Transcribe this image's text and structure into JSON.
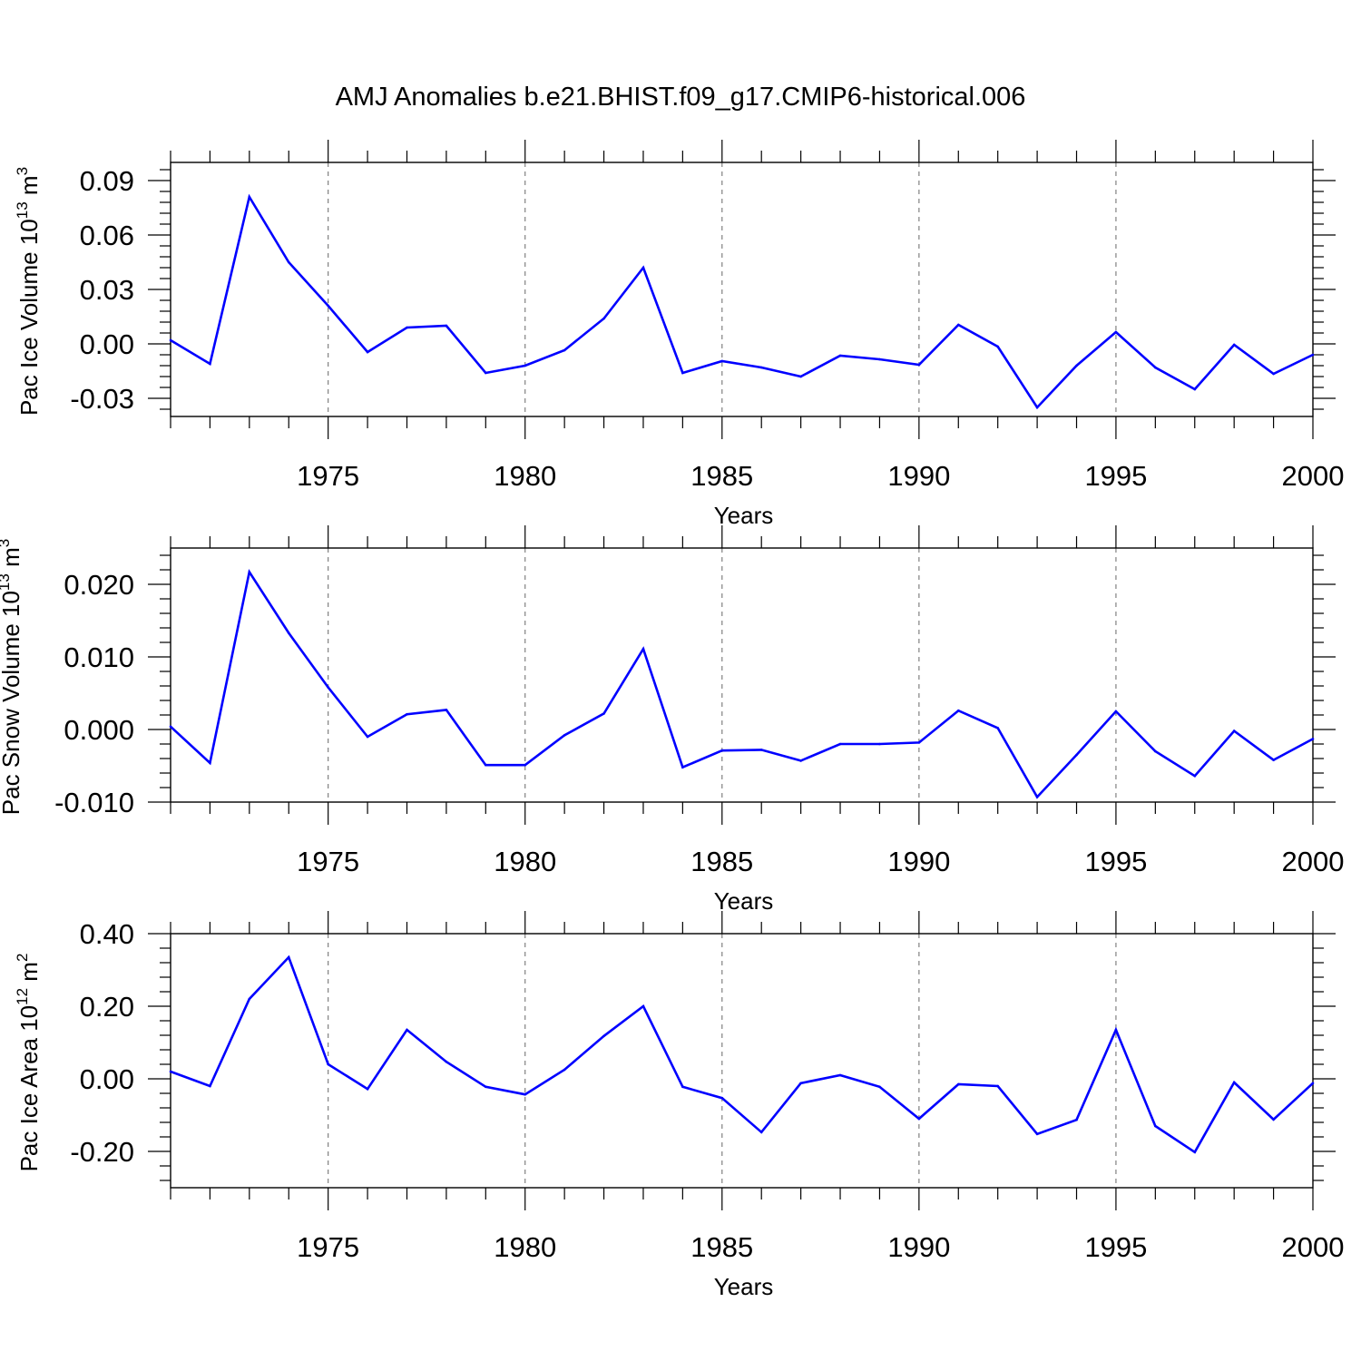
{
  "title": "AMJ Anomalies b.e21.BHIST.f09_g17.CMIP6-historical.006",
  "colors": {
    "line": "#0000ff",
    "axis": "#000000",
    "grid": "#808080"
  },
  "chart_data": [
    {
      "type": "line",
      "ylabel": {
        "main": "Pac Ice Volume 10",
        "exp": "13",
        "unit": " m",
        "unit_exp": "3"
      },
      "xlabel": "Years",
      "xlim": [
        1971,
        2000
      ],
      "ylim": [
        -0.04,
        0.1
      ],
      "yticks": [
        -0.03,
        0.0,
        0.03,
        0.06,
        0.09
      ],
      "ytick_labels": [
        "-0.03",
        "0.00",
        "0.03",
        "0.06",
        "0.09"
      ],
      "xticks": [
        1975,
        1980,
        1985,
        1990,
        1995,
        2000
      ],
      "xtick_labels": [
        "1975",
        "1980",
        "1985",
        "1990",
        "1995",
        "2000"
      ],
      "x": [
        1971,
        1972,
        1973,
        1974,
        1975,
        1976,
        1977,
        1978,
        1979,
        1980,
        1981,
        1982,
        1983,
        1984,
        1985,
        1986,
        1987,
        1988,
        1989,
        1990,
        1991,
        1992,
        1993,
        1994,
        1995,
        1996,
        1997,
        1998,
        1999,
        2000
      ],
      "values": [
        0.002,
        -0.011,
        0.081,
        0.045,
        0.021,
        -0.0045,
        0.009,
        0.01,
        -0.016,
        -0.012,
        -0.0035,
        0.014,
        0.042,
        -0.016,
        -0.0095,
        -0.013,
        -0.018,
        -0.0065,
        -0.0085,
        -0.0115,
        0.0105,
        -0.0015,
        -0.035,
        -0.012,
        0.0065,
        -0.013,
        -0.025,
        -0.0005,
        -0.0165,
        -0.006
      ]
    },
    {
      "type": "line",
      "ylabel": {
        "main": "Pac Snow Volume 10",
        "exp": "13",
        "unit": " m",
        "unit_exp": "3"
      },
      "xlabel": "Years",
      "xlim": [
        1971,
        2000
      ],
      "ylim": [
        -0.01,
        0.025
      ],
      "yticks": [
        -0.01,
        0.0,
        0.01,
        0.02
      ],
      "ytick_labels": [
        "-0.010",
        "0.000",
        "0.010",
        "0.020"
      ],
      "xticks": [
        1975,
        1980,
        1985,
        1990,
        1995,
        2000
      ],
      "xtick_labels": [
        "1975",
        "1980",
        "1985",
        "1990",
        "1995",
        "2000"
      ],
      "x": [
        1971,
        1972,
        1973,
        1974,
        1975,
        1976,
        1977,
        1978,
        1979,
        1980,
        1981,
        1982,
        1983,
        1984,
        1985,
        1986,
        1987,
        1988,
        1989,
        1990,
        1991,
        1992,
        1993,
        1994,
        1995,
        1996,
        1997,
        1998,
        1999,
        2000
      ],
      "values": [
        0.0004,
        -0.0046,
        0.0217,
        0.0133,
        0.0058,
        -0.001,
        0.0021,
        0.0027,
        -0.0049,
        -0.0049,
        -0.0008,
        0.0022,
        0.0111,
        -0.0052,
        -0.0029,
        -0.0028,
        -0.0043,
        -0.002,
        -0.002,
        -0.0018,
        0.0026,
        0.0002,
        -0.0093,
        -0.0035,
        0.0025,
        -0.003,
        -0.0064,
        -0.0002,
        -0.0042,
        -0.0013
      ]
    },
    {
      "type": "line",
      "ylabel": {
        "main": "Pac Ice Area 10",
        "exp": "12",
        "unit": " m",
        "unit_exp": "2"
      },
      "xlabel": "Years",
      "xlim": [
        1971,
        2000
      ],
      "ylim": [
        -0.3,
        0.4
      ],
      "yticks": [
        -0.2,
        0.0,
        0.2,
        0.4
      ],
      "ytick_labels": [
        "-0.20",
        "0.00",
        "0.20",
        "0.40"
      ],
      "xticks": [
        1975,
        1980,
        1985,
        1990,
        1995,
        2000
      ],
      "xtick_labels": [
        "1975",
        "1980",
        "1985",
        "1990",
        "1995",
        "2000"
      ],
      "x": [
        1971,
        1972,
        1973,
        1974,
        1975,
        1976,
        1977,
        1978,
        1979,
        1980,
        1981,
        1982,
        1983,
        1984,
        1985,
        1986,
        1987,
        1988,
        1989,
        1990,
        1991,
        1992,
        1993,
        1994,
        1995,
        1996,
        1997,
        1998,
        1999,
        2000
      ],
      "values": [
        0.02,
        -0.02,
        0.22,
        0.335,
        0.04,
        -0.028,
        0.135,
        0.047,
        -0.022,
        -0.043,
        0.025,
        0.118,
        0.2,
        -0.022,
        -0.053,
        -0.147,
        -0.012,
        0.01,
        -0.022,
        -0.11,
        -0.015,
        -0.02,
        -0.152,
        -0.113,
        0.135,
        -0.13,
        -0.202,
        -0.01,
        -0.112,
        -0.012
      ]
    }
  ]
}
